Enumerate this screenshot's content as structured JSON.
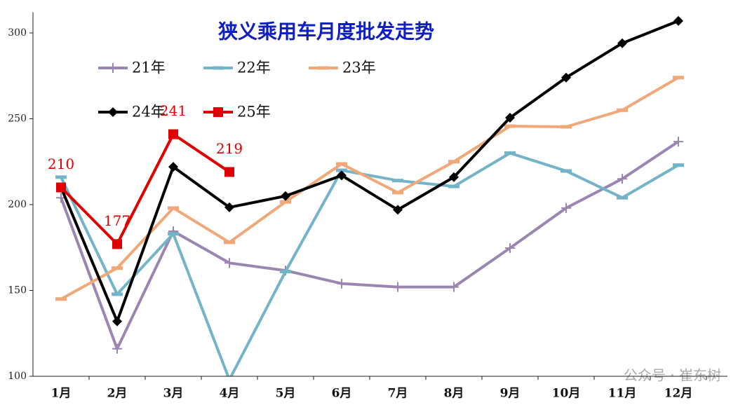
{
  "chart_data": {
    "type": "line",
    "title": "狭义乘用车月度批发走势",
    "watermark": "公众号 · 崔东树",
    "categories": [
      "1月",
      "2月",
      "3月",
      "4月",
      "5月",
      "6月",
      "7月",
      "8月",
      "9月",
      "10月",
      "11月",
      "12月"
    ],
    "ylim": [
      100,
      310
    ],
    "yticks": [
      100,
      150,
      200,
      250,
      300
    ],
    "series": [
      {
        "name": "21年",
        "color": "#9a86b0",
        "marker": "plus",
        "values": [
          204,
          116,
          184.5,
          166,
          161.6,
          154,
          152,
          152,
          174.7,
          198,
          215,
          236.7
        ]
      },
      {
        "name": "22年",
        "color": "#74b4c8",
        "marker": "dash",
        "values": [
          216,
          147.8,
          183,
          98,
          161,
          220,
          214,
          210.6,
          230,
          219.6,
          204,
          223
        ]
      },
      {
        "name": "23年",
        "color": "#f0a878",
        "marker": "dash",
        "values": [
          145,
          163,
          198,
          178,
          201.6,
          223.7,
          207,
          225,
          245.7,
          245.3,
          255,
          274
        ]
      },
      {
        "name": "24年",
        "color": "#000000",
        "marker": "diamond",
        "values": [
          210,
          132,
          222,
          198.4,
          205,
          217,
          197,
          216,
          250.6,
          274,
          294,
          307
        ]
      },
      {
        "name": "25年",
        "color": "#e00000",
        "marker": "square",
        "labels": true,
        "values": [
          210,
          177,
          241,
          219,
          null,
          null,
          null,
          null,
          null,
          null,
          null,
          null
        ]
      }
    ]
  }
}
